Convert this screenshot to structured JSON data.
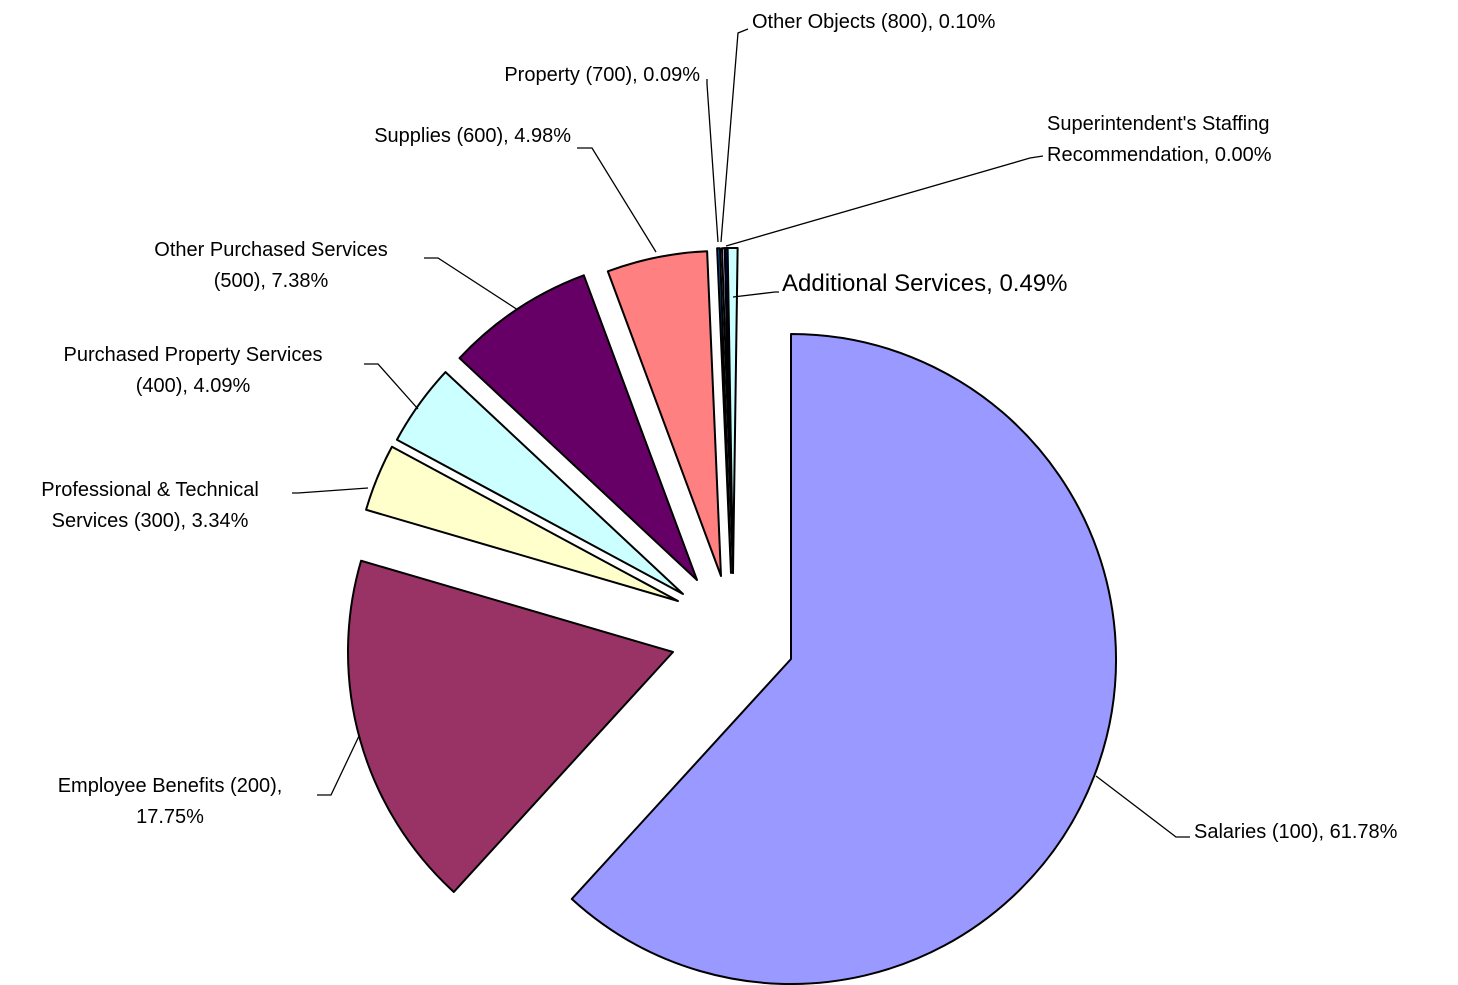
{
  "chart_data": {
    "type": "pie",
    "title": "",
    "exploded": true,
    "start": "12 o'clock",
    "direction": "clockwise",
    "slices": [
      {
        "name": "Salaries (100)",
        "value": 61.78,
        "label": [
          "Salaries (100), 61.78%"
        ],
        "color": "#9999FF"
      },
      {
        "name": "Employee Benefits (200)",
        "value": 17.75,
        "label": [
          "Employee Benefits (200),",
          "17.75%"
        ],
        "color": "#993366"
      },
      {
        "name": "Professional & Technical Services (300)",
        "value": 3.34,
        "label": [
          "Professional & Technical",
          "Services (300), 3.34%"
        ],
        "color": "#FFFFCC"
      },
      {
        "name": "Purchased Property Services (400)",
        "value": 4.09,
        "label": [
          "Purchased Property Services",
          "(400), 4.09%"
        ],
        "color": "#CCFFFF"
      },
      {
        "name": "Other Purchased Services (500)",
        "value": 7.38,
        "label": [
          "Other Purchased Services",
          "(500), 7.38%"
        ],
        "color": "#660066"
      },
      {
        "name": "Supplies (600)",
        "value": 4.98,
        "label": [
          "Supplies (600), 4.98%"
        ],
        "color": "#FF8080"
      },
      {
        "name": "Property (700)",
        "value": 0.09,
        "label": [
          "Property (700), 0.09%"
        ],
        "color": "#0066CC"
      },
      {
        "name": "Other Objects (800)",
        "value": 0.1,
        "label": [
          "Other Objects (800), 0.10%"
        ],
        "color": "#CCCCFF"
      },
      {
        "name": "Superintendent's Staffing Recommendation",
        "value": 0.0,
        "label": [
          "Superintendent's Staffing",
          "Recommendation, 0.00%"
        ],
        "color": "#000080"
      },
      {
        "name": "Additional Services",
        "value": 0.49,
        "label": [
          "Additional Services, 0.49%"
        ],
        "color": "#CCFFFF"
      }
    ]
  }
}
